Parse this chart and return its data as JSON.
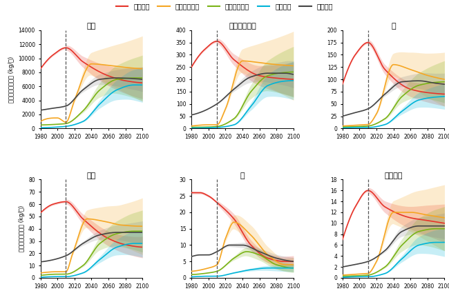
{
  "ylabel": "一人当たり蓄積量 (kg/人)",
  "dashed_year": 2010,
  "subplots": [
    {
      "title": "鉄鋼",
      "ylim": [
        0,
        14000
      ],
      "yticks": [
        0,
        2000,
        4000,
        6000,
        8000,
        10000,
        12000,
        14000
      ]
    },
    {
      "title": "アルミニウム",
      "ylim": [
        0,
        400
      ],
      "yticks": [
        0,
        50,
        100,
        150,
        200,
        250,
        300,
        350,
        400
      ]
    },
    {
      "title": "銅",
      "ylim": [
        0,
        200
      ],
      "yticks": [
        0,
        25,
        50,
        75,
        100,
        125,
        150,
        175,
        200
      ]
    },
    {
      "title": "亜鉛",
      "ylim": [
        0,
        80
      ],
      "yticks": [
        0,
        10,
        20,
        30,
        40,
        50,
        60,
        70,
        80
      ]
    },
    {
      "title": "鉛",
      "ylim": [
        0,
        30
      ],
      "yticks": [
        0,
        5,
        10,
        15,
        20,
        25,
        30
      ]
    },
    {
      "title": "ニッケル",
      "ylim": [
        0,
        18
      ],
      "yticks": [
        0,
        2,
        4,
        6,
        8,
        10,
        12,
        14,
        16,
        18
      ]
    }
  ],
  "legend_labels": [
    "高所得国",
    "上位中所得国",
    "下位中所得国",
    "低所得国",
    "世界平均"
  ],
  "line_colors": [
    "#e63329",
    "#f5a623",
    "#7ab317",
    "#00b4d8",
    "#444444"
  ],
  "band_colors": [
    "#e63329",
    "#f5a623",
    "#7ab317",
    "#00b4d8",
    "#888888"
  ],
  "band_alpha": 0.22
}
